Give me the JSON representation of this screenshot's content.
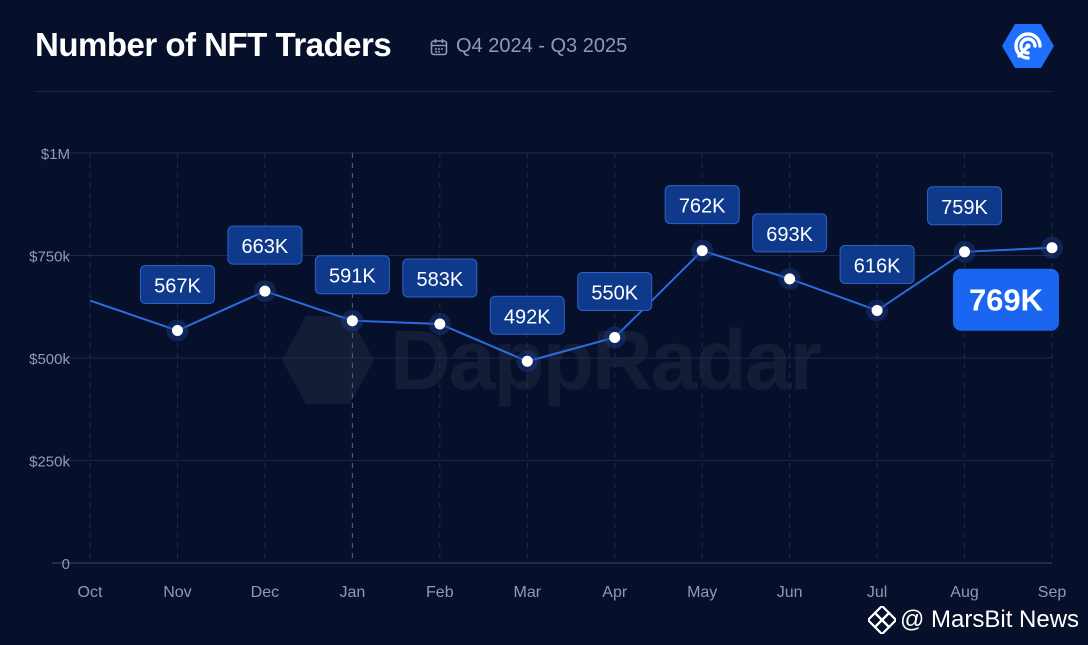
{
  "header": {
    "title": "Number of NFT Traders",
    "period": "Q4 2024 - Q3 2025",
    "calendar_icon": "calendar-icon",
    "logo_icon": "dappradar-logo-icon"
  },
  "watermark": {
    "text": "DappRadar",
    "icon": "dappradar-logo-icon"
  },
  "credit": {
    "text": "@ MarsBit News",
    "icon": "binance-diamond-icon"
  },
  "colors": {
    "background": "#06102a",
    "line": "#2a6de0",
    "label_bg": "#0f3a8c",
    "label_border": "#2d62c9",
    "highlight_bg": "#1a66f0",
    "grid": "#1c2a4a",
    "axis_text": "#8f9ab8"
  },
  "chart_data": {
    "type": "line",
    "title": "Number of NFT Traders",
    "categories": [
      "Oct",
      "Nov",
      "Dec",
      "Jan",
      "Feb",
      "Mar",
      "Apr",
      "May",
      "Jun",
      "Jul",
      "Aug",
      "Sep"
    ],
    "values": [
      640000,
      567000,
      663000,
      591000,
      583000,
      492000,
      550000,
      762000,
      693000,
      616000,
      759000,
      769000
    ],
    "data_labels": [
      null,
      "567K",
      "663K",
      "591K",
      "583K",
      "492K",
      "550K",
      "762K",
      "693K",
      "616K",
      "759K",
      "769K"
    ],
    "highlight_label": "769K",
    "ylim": [
      0,
      1000000
    ],
    "yticks": [
      0,
      250000,
      500000,
      750000,
      1000000
    ],
    "ytick_labels": [
      "0",
      "$250k",
      "$500k",
      "$750k",
      "$1M"
    ],
    "grid": true,
    "legend": "none"
  }
}
